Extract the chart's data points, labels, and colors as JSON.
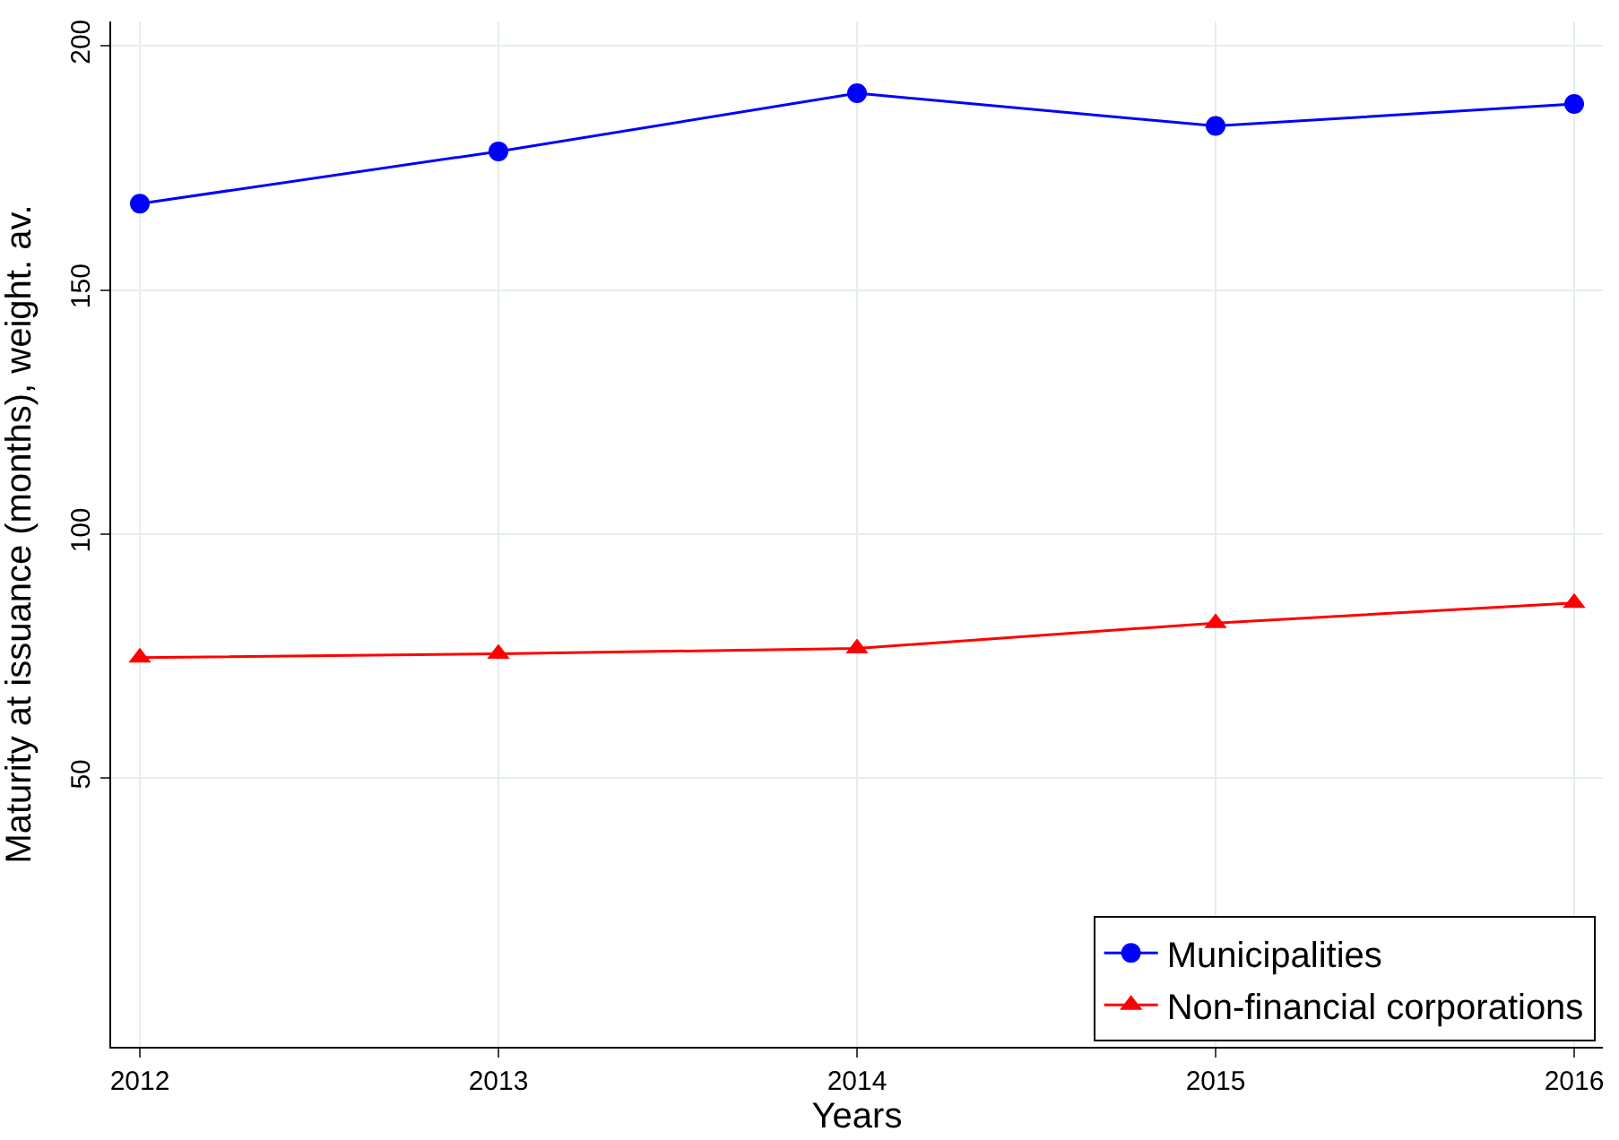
{
  "chart_data": {
    "type": "line",
    "xlabel": "Years",
    "ylabel": "Maturity at issuance (months), weight. av.",
    "x": [
      2012,
      2013,
      2014,
      2015,
      2016
    ],
    "series": [
      {
        "name": "Municipalities",
        "color": "#0000ff",
        "marker": "circle",
        "values": [
          167.7,
          178.4,
          190.3,
          183.6,
          188.1
        ]
      },
      {
        "name": "Non-financial corporations",
        "color": "#ff0000",
        "marker": "triangle",
        "values": [
          74.7,
          75.5,
          76.6,
          81.8,
          85.9
        ]
      }
    ],
    "xlim": [
      2011.92,
      2016.08
    ],
    "xticks": [
      2012,
      2013,
      2014,
      2015,
      2016
    ],
    "ylim": [
      -5,
      205
    ],
    "yticks": [
      50,
      100,
      150,
      200
    ],
    "grid": true,
    "legend": "bottom right",
    "line_style": "solid"
  }
}
